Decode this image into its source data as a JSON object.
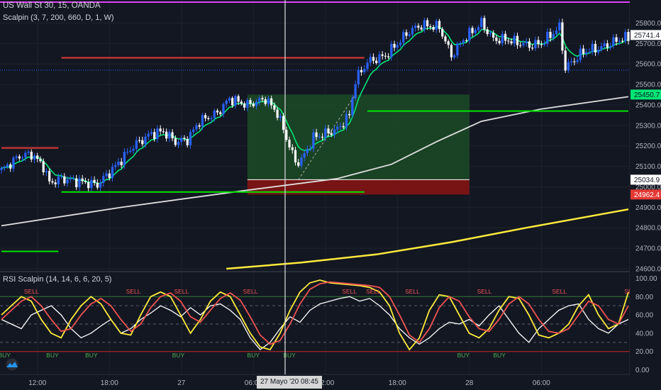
{
  "header": {
    "symbol_title": "US Wall St 30, 15, OANDA",
    "study_title": "Scalpin (3, 7, 200, 660, D, 1, W)",
    "rsi_title": "RSI Scalpin (14, 14, 6, 6, 20, 5)"
  },
  "cursor": {
    "time_label": "27 Mayo '20   08:45"
  },
  "colors": {
    "background": "#131722",
    "up_candle": "#2962ff",
    "down_candle": "#ffffff",
    "fast_ma": "#00e676",
    "slow_ma_white": "#e0e0e0",
    "slow_ma_yellow": "#ffeb3b",
    "level_red": "#e53935",
    "level_green": "#00e600",
    "magenta_line": "#e040fb",
    "rsi_white": "#ffffff",
    "rsi_yellow": "#ffeb3b",
    "rsi_red": "#ef5350",
    "buy_text": "#4caf50",
    "sell_text": "#ef5350"
  },
  "chart_data": [
    {
      "type": "candlestick",
      "title": "US Wall St 30, 15, OANDA",
      "price_axis": {
        "min": 24600,
        "max": 25850,
        "ticks": [
          24600,
          24700,
          24800,
          24900,
          25000,
          25100,
          25200,
          25300,
          25400,
          25500,
          25600,
          25700,
          25800
        ]
      },
      "time_axis": {
        "labels": [
          "12:00",
          "18:00",
          "27",
          "06:00",
          "12:00",
          "18:00",
          "28",
          "06:00"
        ],
        "label_bar_index": [
          12,
          36,
          60,
          84,
          108,
          132,
          156,
          180
        ]
      },
      "bar_count": 210,
      "price_tags": [
        {
          "label": "25741.4",
          "value": 25741.4,
          "style": "white"
        },
        {
          "label": "25450.7",
          "value": 25450.7,
          "style": "green"
        },
        {
          "label": "25034.9",
          "value": 25034.9,
          "style": "white"
        },
        {
          "label": "24962.4",
          "value": 24962.4,
          "style": "red"
        }
      ],
      "close_path": [
        [
          0,
          25080
        ],
        [
          6,
          25150
        ],
        [
          10,
          25160
        ],
        [
          14,
          25100
        ],
        [
          16,
          25020
        ],
        [
          20,
          25040
        ],
        [
          28,
          25020
        ],
        [
          32,
          25010
        ],
        [
          38,
          25100
        ],
        [
          44,
          25200
        ],
        [
          50,
          25260
        ],
        [
          54,
          25270
        ],
        [
          58,
          25220
        ],
        [
          62,
          25230
        ],
        [
          66,
          25320
        ],
        [
          72,
          25360
        ],
        [
          76,
          25430
        ],
        [
          82,
          25400
        ],
        [
          88,
          25430
        ],
        [
          92,
          25360
        ],
        [
          96,
          25200
        ],
        [
          98,
          25120
        ],
        [
          100,
          25130
        ],
        [
          104,
          25240
        ],
        [
          108,
          25260
        ],
        [
          112,
          25280
        ],
        [
          116,
          25350
        ],
        [
          118,
          25520
        ],
        [
          122,
          25610
        ],
        [
          126,
          25630
        ],
        [
          128,
          25640
        ],
        [
          132,
          25700
        ],
        [
          136,
          25760
        ],
        [
          140,
          25790
        ],
        [
          146,
          25780
        ],
        [
          150,
          25640
        ],
        [
          154,
          25720
        ],
        [
          160,
          25800
        ],
        [
          164,
          25720
        ],
        [
          168,
          25720
        ],
        [
          176,
          25690
        ],
        [
          180,
          25700
        ],
        [
          186,
          25780
        ],
        [
          188,
          25580
        ],
        [
          194,
          25660
        ],
        [
          200,
          25680
        ],
        [
          206,
          25720
        ],
        [
          209,
          25730
        ]
      ],
      "white_ma": [
        [
          0,
          24810
        ],
        [
          40,
          24900
        ],
        [
          80,
          24980
        ],
        [
          112,
          25040
        ],
        [
          130,
          25110
        ],
        [
          145,
          25220
        ],
        [
          160,
          25320
        ],
        [
          180,
          25380
        ],
        [
          209,
          25440
        ]
      ],
      "yellow_ma": [
        [
          75,
          24600
        ],
        [
          100,
          24630
        ],
        [
          125,
          24670
        ],
        [
          150,
          24730
        ],
        [
          175,
          24800
        ],
        [
          209,
          24890
        ]
      ],
      "levels": [
        {
          "color": "red",
          "price": 25630,
          "from": 20,
          "to": 121
        },
        {
          "color": "red",
          "price": 25190,
          "from": 0,
          "to": 19
        },
        {
          "color": "green",
          "price": 25370,
          "from": 122,
          "to": 209
        },
        {
          "color": "green",
          "price": 24975,
          "from": 20,
          "to": 121
        },
        {
          "color": "green",
          "price": 24685,
          "from": 0,
          "to": 19
        }
      ],
      "position_box": {
        "entry": 25034.9,
        "target": 25450.7,
        "stop": 24962.4,
        "from_bar": 82,
        "to_bar": 156
      }
    },
    {
      "type": "line",
      "title": "RSI Scalpin (14, 14, 6, 6, 20, 5)",
      "y_axis": {
        "min": -5,
        "max": 105,
        "ticks": [
          0,
          20,
          40,
          60,
          80,
          100
        ]
      },
      "reference_lines": [
        20,
        30,
        50,
        70,
        80
      ],
      "series": [
        {
          "color": "white",
          "values": [
            55,
            50,
            45,
            60,
            65,
            70,
            60,
            45,
            35,
            40,
            48,
            55,
            40,
            45,
            55,
            62,
            70,
            65,
            58,
            68,
            60,
            70,
            72,
            65,
            55,
            35,
            22,
            30,
            45,
            58,
            52,
            65,
            72,
            75,
            78,
            80,
            75,
            78,
            70,
            60,
            45,
            35,
            28,
            35,
            45,
            52,
            50,
            55,
            48,
            60,
            70,
            55,
            40,
            30,
            45,
            55,
            65,
            70,
            72,
            55,
            45,
            40,
            50,
            55
          ]
        },
        {
          "color": "yellow",
          "values": [
            60,
            70,
            80,
            75,
            55,
            40,
            35,
            55,
            70,
            80,
            72,
            55,
            40,
            38,
            60,
            80,
            85,
            80,
            60,
            40,
            55,
            75,
            85,
            80,
            60,
            40,
            25,
            22,
            40,
            65,
            85,
            95,
            98,
            95,
            94,
            93,
            92,
            90,
            85,
            70,
            40,
            22,
            35,
            65,
            82,
            80,
            60,
            40,
            35,
            45,
            65,
            80,
            78,
            60,
            38,
            35,
            40,
            50,
            70,
            82,
            60,
            45,
            50,
            85
          ]
        },
        {
          "color": "red",
          "values": [
            55,
            65,
            75,
            80,
            70,
            55,
            42,
            45,
            60,
            72,
            78,
            70,
            55,
            42,
            50,
            68,
            80,
            84,
            75,
            58,
            52,
            65,
            78,
            84,
            76,
            58,
            38,
            28,
            32,
            50,
            72,
            88,
            94,
            96,
            95,
            94,
            93,
            92,
            90,
            80,
            60,
            38,
            30,
            45,
            68,
            80,
            75,
            58,
            45,
            42,
            55,
            72,
            80,
            72,
            55,
            42,
            40,
            45,
            60,
            75,
            70,
            55,
            50,
            70
          ]
        }
      ],
      "signals": [
        {
          "label": "SELL",
          "kind": "sell",
          "bar": 10
        },
        {
          "label": "SELL",
          "kind": "sell",
          "bar": 44
        },
        {
          "label": "SELL",
          "kind": "sell",
          "bar": 60
        },
        {
          "label": "SELL",
          "kind": "sell",
          "bar": 83
        },
        {
          "label": "SELL",
          "kind": "sell",
          "bar": 116
        },
        {
          "label": "SELL",
          "kind": "sell",
          "bar": 124
        },
        {
          "label": "SELL",
          "kind": "sell",
          "bar": 137
        },
        {
          "label": "SELL",
          "kind": "sell",
          "bar": 161
        },
        {
          "label": "SELL",
          "kind": "sell",
          "bar": 186
        },
        {
          "label": "SE",
          "kind": "sell",
          "bar": 209
        },
        {
          "label": "BUY",
          "kind": "buy",
          "bar": 1
        },
        {
          "label": "BUY",
          "kind": "buy",
          "bar": 17
        },
        {
          "label": "BUY",
          "kind": "buy",
          "bar": 30
        },
        {
          "label": "BUY",
          "kind": "buy",
          "bar": 59
        },
        {
          "label": "BUY",
          "kind": "buy",
          "bar": 84
        },
        {
          "label": "BUY",
          "kind": "buy",
          "bar": 96
        },
        {
          "label": "BUY",
          "kind": "buy",
          "bar": 154
        },
        {
          "label": "BUY",
          "kind": "buy",
          "bar": 166
        }
      ]
    }
  ]
}
